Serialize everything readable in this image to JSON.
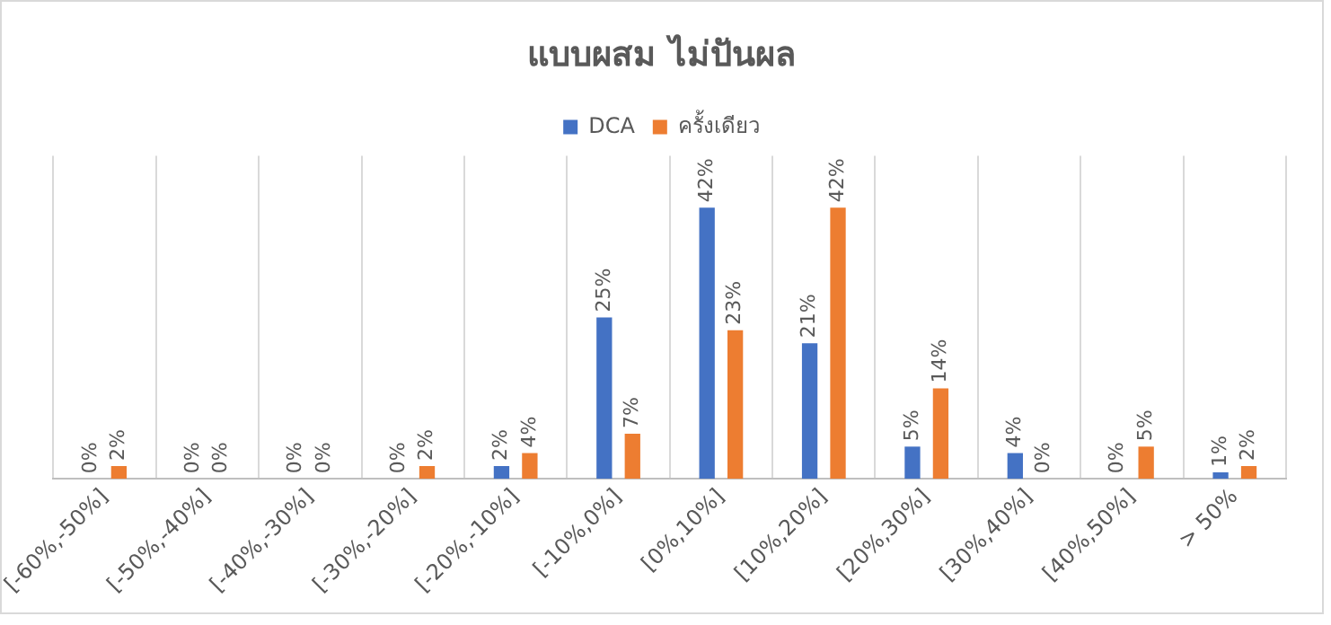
{
  "chart_data": {
    "type": "bar",
    "title": "แบบผสม ไม่ปันผล",
    "categories": [
      "[-60%,-50%]",
      "[-50%,-40%]",
      "[-40%,-30%]",
      "[-30%,-20%]",
      "[-20%,-10%]",
      "[-10%,0%]",
      "[0%,10%]",
      "[10%,20%]",
      "[20%,30%]",
      "[30%,40%]",
      "[40%,50%]",
      "> 50%"
    ],
    "series": [
      {
        "name": "DCA",
        "color": "#4472c4",
        "values": [
          0,
          0,
          0,
          0,
          2,
          25,
          42,
          21,
          5,
          4,
          0,
          1
        ],
        "value_labels": [
          "0%",
          "0%",
          "0%",
          "0%",
          "2%",
          "25%",
          "42%",
          "21%",
          "5%",
          "4%",
          "0%",
          "1%"
        ]
      },
      {
        "name": "ครั้งเดียว",
        "color": "#ed7d31",
        "values": [
          2,
          0,
          0,
          2,
          4,
          7,
          23,
          42,
          14,
          0,
          5,
          2
        ],
        "value_labels": [
          "2%",
          "0%",
          "0%",
          "2%",
          "4%",
          "7%",
          "23%",
          "42%",
          "14%",
          "0%",
          "5%",
          "2%"
        ]
      }
    ],
    "grid": "x",
    "legend": "top",
    "tick_labels": "x"
  }
}
